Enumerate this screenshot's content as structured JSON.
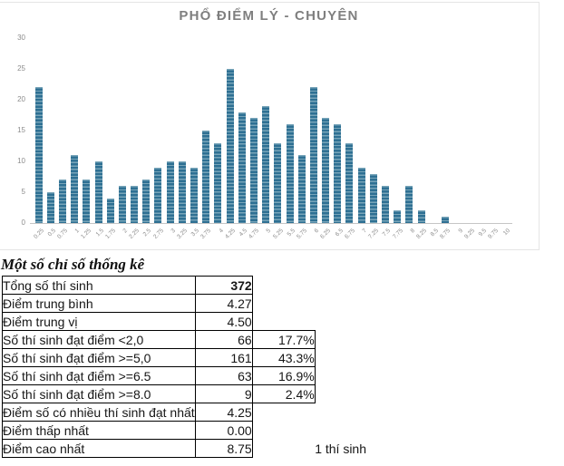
{
  "chart_data": {
    "type": "bar",
    "title": "PHỔ ĐIỂM LÝ - CHUYÊN",
    "categories": [
      "0.25",
      "0.5",
      "0.75",
      "1",
      "1.25",
      "1.5",
      "1.75",
      "2",
      "2.25",
      "2.5",
      "2.75",
      "3",
      "3.25",
      "3.5",
      "3.75",
      "4",
      "4.25",
      "4.5",
      "4.75",
      "5",
      "5.25",
      "5.5",
      "5.75",
      "6",
      "6.25",
      "6.5",
      "6.75",
      "7",
      "7.25",
      "7.5",
      "7.75",
      "8",
      "8.25",
      "8.5",
      "8.75",
      "9",
      "9.25",
      "9.5",
      "9.75",
      "10"
    ],
    "values": [
      22,
      5,
      7,
      11,
      7,
      10,
      4,
      6,
      6,
      7,
      9,
      10,
      10,
      9,
      15,
      13,
      25,
      18,
      17,
      19,
      13,
      16,
      11,
      22,
      17,
      16,
      13,
      9,
      8,
      6,
      2,
      6,
      2,
      0,
      1,
      0,
      0,
      0,
      0,
      0
    ],
    "xlabel": "",
    "ylabel": "",
    "ylim": [
      0,
      30
    ],
    "yticks": [
      0,
      5,
      10,
      15,
      20,
      25,
      30
    ],
    "grid": false,
    "legend": false,
    "bar_color_dark": "#2e7093",
    "bar_color_light": "#78a5b9",
    "title_color": "#7f7f7f",
    "axis_text_color": "#8c8c8c"
  },
  "stats": {
    "heading": "Một số chỉ số thống kê",
    "rows": [
      {
        "label": "Tổng số thí sinh",
        "value": "372",
        "bold": true,
        "pct": "",
        "note": ""
      },
      {
        "label": "Điểm trung bình",
        "value": "4.27",
        "bold": false,
        "pct": "",
        "note": ""
      },
      {
        "label": "Điểm trung vị",
        "value": "4.50",
        "bold": false,
        "pct": "",
        "note": ""
      },
      {
        "label": "Số thí sinh đạt điểm <2,0",
        "value": "66",
        "bold": false,
        "pct": "17.7%",
        "note": ""
      },
      {
        "label": "Số thí sinh đạt điểm >=5,0",
        "value": "161",
        "bold": false,
        "pct": "43.3%",
        "note": ""
      },
      {
        "label": "Số thí sinh đạt điểm >=6.5",
        "value": "63",
        "bold": false,
        "pct": "16.9%",
        "note": ""
      },
      {
        "label": "Số thí sinh đạt điểm >=8.0",
        "value": "9",
        "bold": false,
        "pct": "2.4%",
        "note": ""
      },
      {
        "label": "Điểm số có nhiều thí sinh đạt nhất",
        "value": "4.25",
        "bold": false,
        "pct": "",
        "note": ""
      },
      {
        "label": "Điểm thấp nhất",
        "value": "0.00",
        "bold": false,
        "pct": "",
        "note": ""
      },
      {
        "label": "Điểm cao nhất",
        "value": "8.75",
        "bold": false,
        "pct": "",
        "note": "1 thí sinh"
      }
    ]
  }
}
